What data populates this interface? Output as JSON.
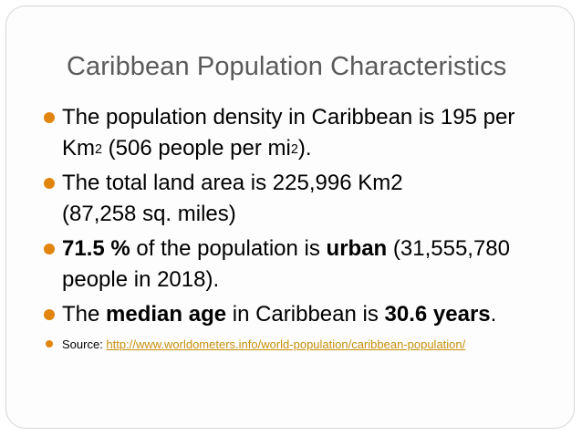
{
  "slide": {
    "title": "Caribbean Population Characteristics",
    "bullet_color": "#e2850f",
    "link_color": "#c8900b",
    "bullets": [
      {
        "part1": "The population density in Caribbean is 195 per Km",
        "sup1": "2",
        "part2": " (506 people per mi",
        "sup2": "2",
        "part3": ")."
      },
      {
        "line1": "The total land area is 225,996 Km2",
        "line2": "(87,258 sq. miles)"
      },
      {
        "bold1": "71.5 %",
        "text1": " of the population is ",
        "bold2": "urban",
        "text2": " (31,555,780 people in 2018)."
      },
      {
        "text1": "The ",
        "bold1": "median age",
        "text2": " in Caribbean is ",
        "bold2": "30.6 years",
        "text3": "."
      }
    ],
    "source": {
      "label": "Source: ",
      "url": "http://www.worldometers.info/world-population/caribbean-population/"
    }
  }
}
